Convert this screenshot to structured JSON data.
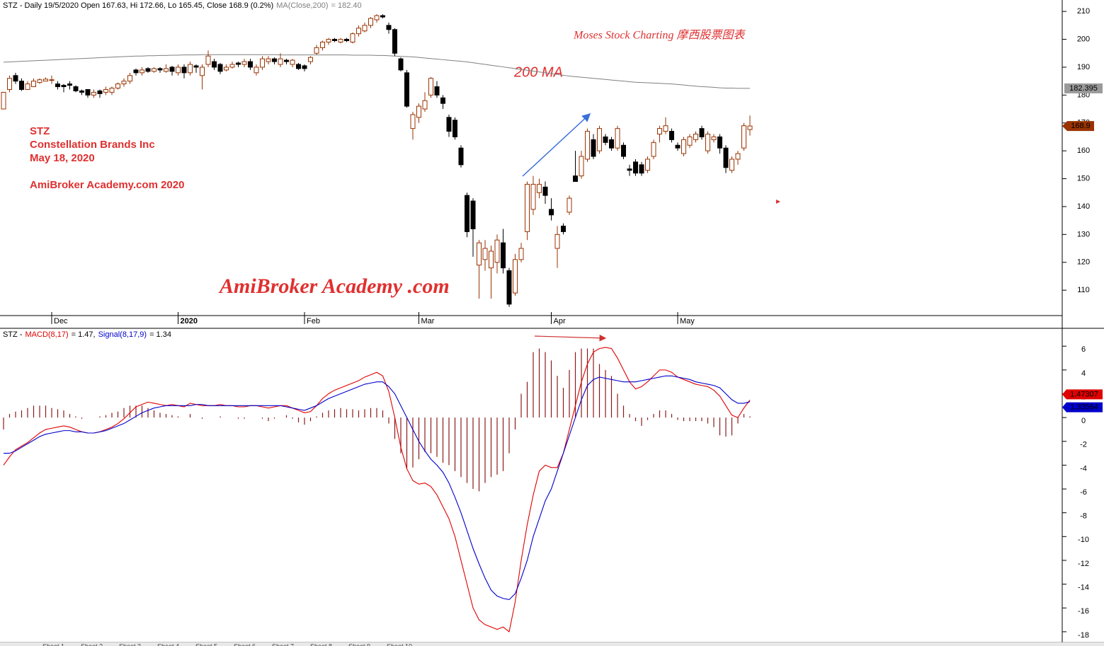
{
  "chart_data": [
    {
      "type": "candlestick",
      "header": "STZ - Daily 19/5/2020 Open 167.63, Hi 172.66, Lo 165.45, Close 168.9 (0.2%)",
      "open": [
        175,
        182,
        187,
        185,
        182,
        183,
        184.5,
        185,
        185.5,
        184,
        183.5,
        184,
        183,
        181.5,
        182,
        180,
        181.5,
        181,
        181,
        182.5,
        184,
        185,
        189,
        188,
        189.5,
        188.5,
        189.5,
        188.5,
        190,
        188,
        190,
        188,
        190.5,
        187,
        191,
        192,
        191,
        189,
        190,
        191.5,
        191,
        192,
        188,
        190,
        192,
        193,
        191,
        192.5,
        191,
        191,
        190.5,
        192,
        195,
        197,
        199,
        200,
        199,
        200,
        199,
        202,
        203,
        205,
        207,
        208.5,
        205,
        203.5,
        193,
        188,
        168,
        172,
        175,
        180,
        183,
        179,
        172,
        171,
        161,
        144,
        142,
        119,
        121,
        118,
        120,
        127,
        117,
        109,
        121,
        131,
        139,
        145,
        147,
        139,
        125,
        133,
        138,
        151,
        151,
        157,
        164,
        160,
        165,
        164,
        161,
        162,
        153.5,
        156,
        155,
        153,
        158,
        166,
        167,
        167,
        162,
        159,
        162,
        164,
        168,
        160,
        164,
        165,
        161,
        153,
        157,
        161,
        167.63
      ],
      "high": [
        181,
        187,
        188,
        186,
        185,
        186,
        186,
        186.3,
        187,
        185,
        184,
        185,
        183.5,
        182,
        182,
        182,
        182,
        183,
        183,
        184.5,
        186,
        188,
        189.5,
        190,
        190,
        190,
        190,
        191,
        190.5,
        191,
        191,
        192,
        191,
        191,
        196,
        193,
        191.5,
        191,
        192,
        192,
        193,
        193,
        191,
        194,
        194,
        193.5,
        195,
        193,
        193,
        191.5,
        191,
        194,
        198,
        199.5,
        200.5,
        200.5,
        200.5,
        200.5,
        202.5,
        205,
        206,
        208,
        209,
        209,
        206,
        204,
        193.5,
        189,
        174,
        177,
        181,
        186.5,
        185,
        180,
        173,
        172,
        162,
        145,
        143,
        128,
        128,
        126,
        130,
        132,
        118,
        123,
        127,
        149,
        151,
        150,
        149,
        143,
        133,
        134,
        144,
        160,
        160,
        168,
        166,
        169,
        166,
        165,
        169,
        163,
        155,
        157,
        156,
        158,
        164,
        169,
        172,
        168,
        163,
        165,
        166,
        167,
        169,
        167,
        166,
        166,
        162,
        158,
        160,
        170,
        172.66
      ],
      "low": [
        175,
        181,
        184,
        181.5,
        182,
        183,
        184,
        185,
        184,
        182,
        181,
        182,
        181,
        180,
        179,
        179,
        179,
        180,
        180,
        182,
        183,
        184,
        187,
        187,
        188,
        188,
        188,
        188,
        187,
        187,
        186,
        187,
        188,
        182,
        190,
        189,
        187.5,
        188.5,
        189.5,
        190,
        190,
        189,
        187,
        189,
        191,
        191,
        190,
        191,
        190,
        189,
        188.5,
        191,
        194.5,
        196,
        198,
        199,
        198.5,
        199,
        198.5,
        201,
        202.5,
        204,
        206,
        207.5,
        202,
        194,
        188.5,
        175.5,
        164,
        170,
        174,
        179,
        179,
        175,
        165,
        164,
        154,
        129,
        122,
        107,
        117,
        107,
        116,
        116,
        104,
        108,
        120,
        128,
        137,
        143,
        141,
        135,
        118,
        130,
        137,
        149,
        150,
        156,
        157,
        159,
        162,
        160,
        160,
        157,
        151,
        151,
        151,
        152,
        157,
        163,
        166,
        163,
        160,
        158,
        161,
        163,
        164,
        159,
        163,
        159,
        152,
        152,
        155,
        160,
        165.45
      ],
      "close": [
        181,
        186,
        185,
        182,
        184,
        185,
        185.5,
        185.7,
        185.5,
        183,
        183,
        183.5,
        181.5,
        181,
        180,
        181,
        180.5,
        182,
        182.5,
        184,
        185,
        187,
        188,
        189,
        188.5,
        189.5,
        189,
        189.5,
        188.5,
        190,
        188,
        191,
        190,
        190,
        194,
        190,
        188.5,
        190,
        191,
        191,
        192,
        190,
        190,
        193,
        193,
        192,
        193,
        192,
        192.5,
        189.5,
        189.5,
        193.5,
        197,
        199,
        200,
        199.5,
        200,
        199.5,
        202,
        204,
        205,
        207.5,
        208.5,
        208,
        203.5,
        195,
        189,
        176,
        173,
        176,
        178,
        186,
        180,
        177,
        167,
        165,
        155,
        131,
        132,
        127,
        125,
        124,
        128,
        118,
        105,
        121,
        125,
        148,
        148,
        148,
        144,
        137,
        130,
        131,
        143,
        149,
        158,
        167,
        158,
        168,
        163,
        161,
        168,
        158,
        153,
        152,
        152,
        157,
        163,
        168,
        169,
        164,
        161,
        164,
        165,
        166,
        165,
        166,
        165,
        161,
        154,
        157,
        159,
        169,
        168.9
      ],
      "close_label": "168.9",
      "up_color": "#993300",
      "down_color": "#000000",
      "ma": {
        "name": "MA(Close,200)",
        "header_value": "= 182.40",
        "color": "#808080",
        "last_label": "182.395",
        "values": [
          191.8,
          191.9,
          192.0,
          192.1,
          192.2,
          192.3,
          192.4,
          192.5,
          192.6,
          192.7,
          192.8,
          192.9,
          193.0,
          193.1,
          193.2,
          193.3,
          193.4,
          193.5,
          193.6,
          193.7,
          193.8,
          193.9,
          194.0,
          194.0,
          194.1,
          194.1,
          194.2,
          194.2,
          194.3,
          194.3,
          194.4,
          194.4,
          194.4,
          194.5,
          194.5,
          194.5,
          194.5,
          194.5,
          194.5,
          194.5,
          194.5,
          194.5,
          194.5,
          194.5,
          194.5,
          194.5,
          194.4,
          194.4,
          194.4,
          194.4,
          194.4,
          194.4,
          194.4,
          194.4,
          194.4,
          194.4,
          194.4,
          194.4,
          194.3,
          194.3,
          194.3,
          194.3,
          194.2,
          194.2,
          194.1,
          194.0,
          193.9,
          193.8,
          193.7,
          193.5,
          193.3,
          193.1,
          192.9,
          192.7,
          192.5,
          192.3,
          192.1,
          191.9,
          191.6,
          191.3,
          191.0,
          190.7,
          190.4,
          190.1,
          189.8,
          189.5,
          189.2,
          188.9,
          188.6,
          188.3,
          188.0,
          187.7,
          187.4,
          187.1,
          186.8,
          186.6,
          186.4,
          186.2,
          186.0,
          185.8,
          185.6,
          185.4,
          185.2,
          185.0,
          184.8,
          184.6,
          184.5,
          184.4,
          184.3,
          184.2,
          184.1,
          184.0,
          183.8,
          183.6,
          183.4,
          183.2,
          183.0,
          182.9,
          182.8,
          182.6,
          182.5,
          182.5,
          182.4,
          182.4,
          182.395
        ]
      },
      "ylim": [
        100.9,
        214.1
      ],
      "yticks": [
        110,
        120,
        130,
        140,
        150,
        160,
        170,
        180,
        190,
        200,
        210
      ],
      "xticks": [
        {
          "value": 8,
          "label": "Dec"
        },
        {
          "value": 29,
          "label": "2020"
        },
        {
          "value": 50,
          "label": "Feb"
        },
        {
          "value": 69,
          "label": "Mar"
        },
        {
          "value": 91,
          "label": "Apr"
        },
        {
          "value": 112,
          "label": "May"
        }
      ],
      "annotations": {
        "ticker": "STZ",
        "company": "Constellation Brands Inc",
        "date": "May 18, 2020",
        "site": "AmiBroker Academy.com  2020",
        "brand": "Moses Stock Charting  摩西股票图表",
        "ma_note": "200 MA",
        "watermark": "AmiBroker Academy .com"
      }
    },
    {
      "type": "macd",
      "header_prefix": "STZ -",
      "series": [
        {
          "name": "MACD(8,17)",
          "header_value": "= 1.47,",
          "color": "#e00000",
          "last_label": "1.47307",
          "values": [
            -4,
            -3.3,
            -2.7,
            -2.4,
            -2.1,
            -1.7,
            -1.3,
            -1.0,
            -0.9,
            -0.8,
            -0.7,
            -0.8,
            -1.0,
            -1.2,
            -1.3,
            -1.3,
            -1.2,
            -1.0,
            -0.8,
            -0.5,
            -0.1,
            0.4,
            0.9,
            1.1,
            1.3,
            1.2,
            1.1,
            1.0,
            1.1,
            1.0,
            0.9,
            1.2,
            1.1,
            1.0,
            1.0,
            1.0,
            1.1,
            1.0,
            1.0,
            0.9,
            0.9,
            1.0,
            1.0,
            0.9,
            0.8,
            0.9,
            1.0,
            1.0,
            0.8,
            0.6,
            0.4,
            0.5,
            1.0,
            1.6,
            2.0,
            2.3,
            2.5,
            2.7,
            2.9,
            3.1,
            3.4,
            3.6,
            3.8,
            3.5,
            2.2,
            0.0,
            -2.5,
            -4.3,
            -5.3,
            -5.6,
            -5.5,
            -5.8,
            -6.5,
            -7.5,
            -8.5,
            -10.0,
            -12.0,
            -14.0,
            -16.0,
            -17.0,
            -17.4,
            -17.6,
            -17.8,
            -17.6,
            -18.0,
            -15.5,
            -12.0,
            -9.0,
            -6.5,
            -4.5,
            -4.0,
            -4.2,
            -4.2,
            -3.0,
            -1.0,
            1.0,
            3.0,
            4.5,
            5.5,
            5.8,
            5.9,
            5.8,
            5.0,
            4.0,
            3.0,
            2.4,
            2.6,
            3.0,
            3.5,
            4.0,
            4.0,
            3.8,
            3.4,
            3.2,
            3.0,
            2.8,
            2.7,
            2.6,
            2.3,
            1.8,
            1.0,
            0.2,
            0.0,
            0.8,
            1.47307
          ]
        },
        {
          "name": "Signal(8,17,9)",
          "header_value": "= 1.34",
          "color": "#0000cc",
          "last_label": "1.33564",
          "values": [
            -3.0,
            -3.0,
            -2.8,
            -2.5,
            -2.2,
            -1.9,
            -1.6,
            -1.4,
            -1.3,
            -1.2,
            -1.1,
            -1.1,
            -1.2,
            -1.2,
            -1.3,
            -1.3,
            -1.2,
            -1.1,
            -0.9,
            -0.7,
            -0.5,
            -0.2,
            0.1,
            0.4,
            0.6,
            0.8,
            0.9,
            1.0,
            1.0,
            1.0,
            1.0,
            1.0,
            1.1,
            1.1,
            1.0,
            1.0,
            1.0,
            1.0,
            1.0,
            1.0,
            1.0,
            1.0,
            1.0,
            1.0,
            1.0,
            1.0,
            1.0,
            0.9,
            0.8,
            0.7,
            0.6,
            0.8,
            1.0,
            1.3,
            1.6,
            1.8,
            2.0,
            2.2,
            2.4,
            2.6,
            2.8,
            2.9,
            3.0,
            3.0,
            2.6,
            2.0,
            1.0,
            0.0,
            -1.0,
            -2.0,
            -2.8,
            -3.5,
            -4.0,
            -4.6,
            -5.5,
            -6.7,
            -8.0,
            -9.5,
            -11.0,
            -12.3,
            -13.5,
            -14.5,
            -15.0,
            -15.2,
            -15.3,
            -14.8,
            -13.5,
            -12.0,
            -10.0,
            -8.5,
            -7.0,
            -6.0,
            -4.5,
            -3.0,
            -1.5,
            0.0,
            1.5,
            2.7,
            3.2,
            3.4,
            3.3,
            3.2,
            3.1,
            3.0,
            3.0,
            3.0,
            3.1,
            3.2,
            3.3,
            3.4,
            3.5,
            3.5,
            3.4,
            3.3,
            3.2,
            3.0,
            2.9,
            2.8,
            2.7,
            2.5,
            2.0,
            1.5,
            1.2,
            1.2,
            1.33564
          ]
        }
      ],
      "histogram": {
        "color": "#8b1a1a",
        "values": [
          -1,
          0.3,
          0.5,
          0.6,
          0.8,
          1.0,
          1.0,
          1.0,
          0.8,
          0.7,
          0.6,
          0.3,
          0.1,
          -0.1,
          0.0,
          0.0,
          0.1,
          0.2,
          0.4,
          0.5,
          0.8,
          1.0,
          1.0,
          1.0,
          0.8,
          0.6,
          0.4,
          0.3,
          0.2,
          0.1,
          0.0,
          0.3,
          0.0,
          -0.1,
          0.0,
          0.0,
          0.1,
          0.0,
          0.0,
          -0.1,
          -0.1,
          0.0,
          0.0,
          -0.1,
          -0.3,
          -0.1,
          0.0,
          0.2,
          -0.1,
          -0.4,
          -0.6,
          -0.3,
          0.1,
          0.4,
          0.6,
          0.7,
          0.8,
          0.7,
          0.7,
          0.6,
          0.7,
          0.8,
          0.8,
          0.6,
          -0.5,
          -1.8,
          -3.0,
          -4.3,
          -4.2,
          -3.5,
          -2.9,
          -3.0,
          -3.3,
          -3.8,
          -4.0,
          -4.5,
          -5.0,
          -5.5,
          -6.0,
          -6.2,
          -5.5,
          -5.0,
          -4.8,
          -4.5,
          -3.0,
          -1.0,
          2.0,
          3.0,
          5.5,
          5.8,
          5.5,
          4.8,
          3.5,
          2.5,
          4.0,
          5.5,
          5.8,
          5.8,
          5.8,
          4.5,
          4.0,
          3.5,
          2.0,
          1.0,
          0.3,
          -0.3,
          -0.7,
          -0.2,
          0.3,
          0.6,
          0.6,
          0.3,
          -0.2,
          -0.3,
          -0.3,
          -0.3,
          -0.3,
          -0.5,
          -0.8,
          -1.5,
          -1.6,
          -1.5,
          -0.5,
          0.3,
          0.1
        ]
      },
      "ylim": [
        -18.9,
        7.5
      ],
      "yticks": [
        -18,
        -16,
        -14,
        -12,
        -10,
        -8,
        -6,
        -4,
        -2,
        0,
        2,
        4,
        6
      ]
    }
  ],
  "sheet_tabs": [
    "Sheet 1",
    "Sheet 2",
    "Sheet 3",
    "Sheet 4",
    "Sheet 5",
    "Sheet 6",
    "Sheet 7",
    "Sheet 8",
    "Sheet 9",
    "Sheet 10"
  ]
}
